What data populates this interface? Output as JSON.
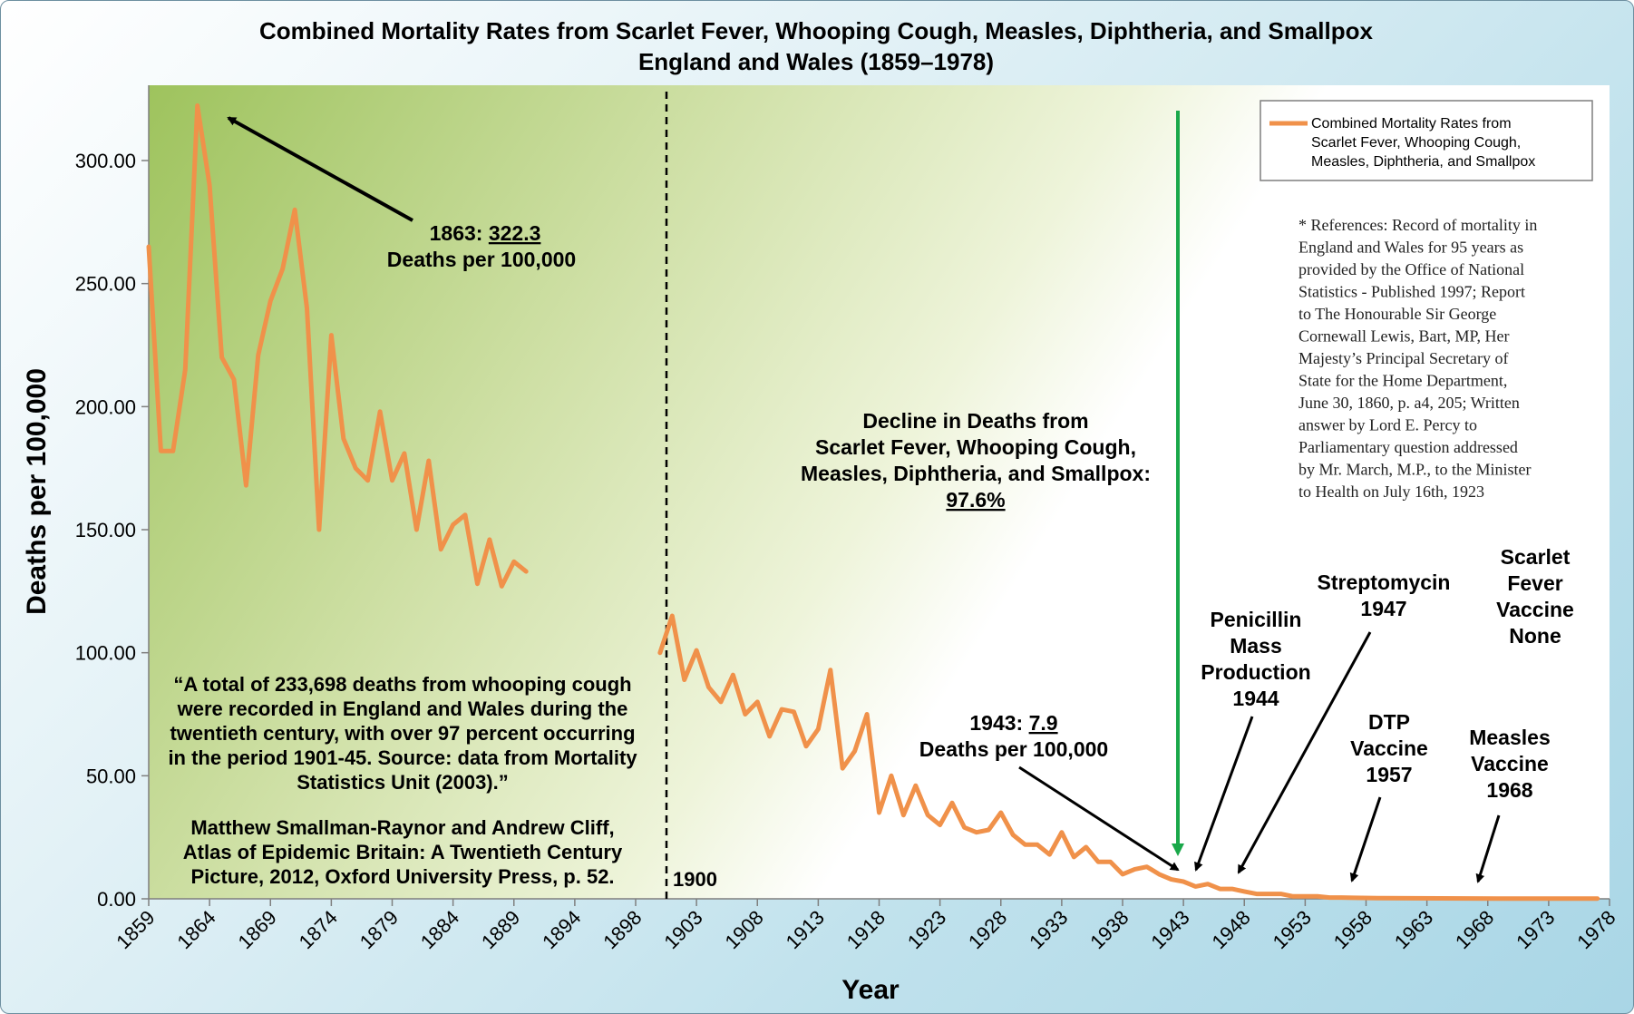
{
  "chart_data": {
    "type": "line",
    "title": "Combined Mortality Rates from Scarlet Fever, Whooping Cough, Measles, Diphtheria, and Smallpox",
    "subtitle": "England and Wales (1859–1978)",
    "xlabel": "Year",
    "ylabel": "Deaths per 100,000",
    "ylim": [
      0,
      330
    ],
    "x_tick_labels": [
      "1859",
      "1864",
      "1869",
      "1874",
      "1879",
      "1884",
      "1889",
      "1894",
      "1898",
      "1903",
      "1908",
      "1913",
      "1918",
      "1923",
      "1928",
      "1933",
      "1938",
      "1943",
      "1948",
      "1953",
      "1958",
      "1963",
      "1968",
      "1973",
      "1978"
    ],
    "y_tick_labels": [
      "0.00",
      "50.00",
      "100.00",
      "150.00",
      "200.00",
      "250.00",
      "300.00"
    ],
    "legend_label": "Combined Mortality Rates from Scarlet Fever, Whooping Cough, Measles, Diphtheria, and Smallpox",
    "legend_position": "top-right",
    "series": [
      {
        "name": "Combined Mortality Rates from Scarlet Fever, Whooping Cough, Measles, Diphtheria, and Smallpox",
        "color": "#f0914a",
        "segments": [
          {
            "x": [
              1859,
              1860,
              1861,
              1862,
              1863,
              1864,
              1865,
              1866,
              1867,
              1868,
              1869,
              1870,
              1871,
              1872,
              1873,
              1874,
              1875,
              1876,
              1877,
              1878,
              1879,
              1880,
              1881,
              1882,
              1883,
              1884,
              1885,
              1886,
              1887,
              1888,
              1889,
              1890
            ],
            "values": [
              265,
              182,
              182,
              215,
              322.3,
              290,
              220,
              211,
              168,
              221,
              243,
              256,
              280,
              240,
              150,
              229,
              187,
              175,
              170,
              198,
              170,
              181,
              150,
              178,
              142,
              152,
              156,
              128,
              146,
              127,
              137,
              133
            ]
          },
          {
            "x": [
              1901,
              1902,
              1903,
              1904,
              1905,
              1906,
              1907,
              1908,
              1909,
              1910,
              1911,
              1912,
              1913,
              1914,
              1915,
              1916,
              1917,
              1918,
              1919,
              1920,
              1921,
              1922,
              1923,
              1924,
              1925,
              1926,
              1927,
              1928,
              1929,
              1930,
              1931,
              1932,
              1933,
              1934,
              1935,
              1936,
              1937,
              1938,
              1939,
              1940,
              1941,
              1942,
              1943,
              1944,
              1945,
              1946,
              1947,
              1948,
              1949,
              1950,
              1951,
              1952,
              1953,
              1954,
              1955,
              1956,
              1957,
              1958,
              1960,
              1965,
              1970,
              1978
            ],
            "values": [
              100,
              115,
              89,
              101,
              86,
              80,
              91,
              75,
              80,
              66,
              77,
              76,
              62,
              69,
              93,
              53,
              60,
              75,
              35,
              50,
              34,
              46,
              34,
              30,
              39,
              29,
              27,
              28,
              35,
              26,
              22,
              22,
              18,
              27,
              17,
              21,
              15,
              15,
              10,
              12,
              13,
              10,
              7.9,
              7,
              5,
              6,
              4,
              4,
              3,
              2,
              2,
              2,
              1,
              1,
              1,
              0.5,
              0.5,
              0.4,
              0.3,
              0.2,
              0.1,
              0.1
            ]
          }
        ]
      }
    ],
    "annotations": {
      "peak": {
        "year_label": "1863: ",
        "value": "322.3",
        "unit": "Deaths per 100,000"
      },
      "low": {
        "year_label": "1943: ",
        "value": "7.9",
        "unit": "Deaths per 100,000"
      },
      "divider_label": "1900",
      "decline": {
        "lines": [
          "Decline in Deaths from",
          "Scarlet Fever, Whooping Cough,",
          "Measles, Diphtheria, and Smallpox:"
        ],
        "percent": "97.6%"
      },
      "events": [
        {
          "lines": [
            "Penicillin",
            "Mass",
            "Production",
            "1944"
          ]
        },
        {
          "lines": [
            "Streptomycin",
            "1947"
          ]
        },
        {
          "lines": [
            "DTP",
            "Vaccine",
            "1957"
          ]
        },
        {
          "lines": [
            "Scarlet",
            "Fever",
            "Vaccine",
            "None"
          ]
        },
        {
          "lines": [
            "Measles",
            "Vaccine",
            "1968"
          ]
        }
      ],
      "quote_lines": [
        "“A total of 233,698 deaths from whooping cough",
        "were recorded in England and Wales during the",
        "twentieth century, with over 97 percent occurring",
        "in the period 1901-45. Source: data from Mortality",
        "Statistics Unit (2003).”"
      ],
      "citation_lines": [
        "Matthew Smallman-Raynor and Andrew Cliff,",
        "Atlas of Epidemic Britain: A Twentieth Century",
        "Picture, 2012, Oxford University Press, p. 52."
      ],
      "references_lines": [
        "* References: Record of mortality in",
        "England and Wales for 95 years as",
        "provided by the Office of National",
        "Statistics - Published 1997; Report",
        "to The Honourable Sir George",
        "Cornewall Lewis, Bart, MP, Her",
        "Majesty’s Principal Secretary of",
        "State for the Home Department,",
        "June 30, 1860, p. a4, 205; Written",
        "answer by Lord E. Percy to",
        "Parliamentary question addressed",
        "by Mr. March, M.P., to the Minister",
        "to Health on July 16th, 1923"
      ]
    }
  }
}
